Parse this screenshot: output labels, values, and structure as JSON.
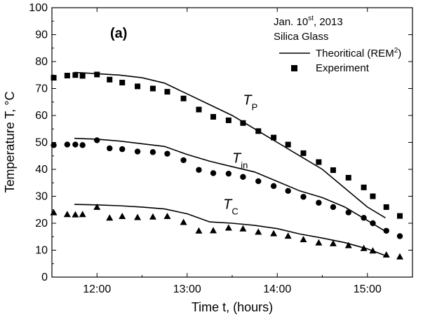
{
  "chart_data": {
    "type": "scatter",
    "panel_label": "(a)",
    "annotation": {
      "line1_prefix": "Jan. 10",
      "line1_sup": "st",
      "line1_suffix": ", 2013",
      "line2": "Silica Glass"
    },
    "legend": {
      "placement": "top-right",
      "line_label": "Theoritical (REM",
      "line_sup": "2",
      "line_close": ")",
      "marker_label": "Experiment"
    },
    "xlabel": "Time t, (hours)",
    "ylabel": "Temperature T, °C",
    "xlim": [
      11.5,
      15.5
    ],
    "ylim": [
      0,
      100
    ],
    "xticks": [
      {
        "value": 12,
        "label": "12:00"
      },
      {
        "value": 13,
        "label": "13:00"
      },
      {
        "value": 14,
        "label": "14:00"
      },
      {
        "value": 15,
        "label": "15:00"
      }
    ],
    "yticks": [
      0,
      10,
      20,
      30,
      40,
      50,
      60,
      70,
      80,
      90,
      100
    ],
    "series": [
      {
        "label_main": "T",
        "label_sub": "P",
        "marker": "square",
        "label_pos": [
          13.62,
          64
        ],
        "theory": [
          [
            11.75,
            76
          ],
          [
            12.0,
            75.5
          ],
          [
            12.25,
            75
          ],
          [
            12.5,
            74
          ],
          [
            12.75,
            72
          ],
          [
            13.0,
            68
          ],
          [
            13.25,
            64
          ],
          [
            13.5,
            60
          ],
          [
            13.75,
            55
          ],
          [
            14.0,
            50
          ],
          [
            14.25,
            45
          ],
          [
            14.5,
            40
          ],
          [
            14.75,
            33
          ],
          [
            15.0,
            26
          ],
          [
            15.2,
            22
          ]
        ],
        "points": [
          [
            11.52,
            74
          ],
          [
            11.67,
            74.8
          ],
          [
            11.76,
            75
          ],
          [
            11.84,
            74.7
          ],
          [
            12.0,
            75.2
          ],
          [
            12.14,
            73.3
          ],
          [
            12.28,
            72.2
          ],
          [
            12.45,
            70.8
          ],
          [
            12.62,
            70
          ],
          [
            12.78,
            68.8
          ],
          [
            12.96,
            66.3
          ],
          [
            13.13,
            62.2
          ],
          [
            13.29,
            59.5
          ],
          [
            13.46,
            58.2
          ],
          [
            13.62,
            57.2
          ],
          [
            13.79,
            54.2
          ],
          [
            13.96,
            51.8
          ],
          [
            14.12,
            49.2
          ],
          [
            14.29,
            46
          ],
          [
            14.46,
            42.7
          ],
          [
            14.62,
            39.7
          ],
          [
            14.79,
            36.9
          ],
          [
            14.96,
            33.3
          ],
          [
            15.06,
            30
          ],
          [
            15.21,
            26
          ],
          [
            15.36,
            22.7
          ]
        ]
      },
      {
        "label_main": "T",
        "label_sub": "in",
        "marker": "circle",
        "label_pos": [
          13.5,
          42.5
        ],
        "theory": [
          [
            11.75,
            51.5
          ],
          [
            12.0,
            51.2
          ],
          [
            12.25,
            50.5
          ],
          [
            12.5,
            49.5
          ],
          [
            12.75,
            48.5
          ],
          [
            13.0,
            45.5
          ],
          [
            13.25,
            43
          ],
          [
            13.5,
            41
          ],
          [
            13.75,
            39
          ],
          [
            14.0,
            35.5
          ],
          [
            14.25,
            32
          ],
          [
            14.5,
            29.5
          ],
          [
            14.75,
            26
          ],
          [
            15.0,
            21
          ],
          [
            15.2,
            17
          ]
        ],
        "points": [
          [
            11.52,
            49
          ],
          [
            11.67,
            49.2
          ],
          [
            11.76,
            49.2
          ],
          [
            11.84,
            49
          ],
          [
            12.0,
            50.8
          ],
          [
            12.14,
            47.8
          ],
          [
            12.28,
            47.5
          ],
          [
            12.45,
            46.6
          ],
          [
            12.62,
            46.4
          ],
          [
            12.78,
            45.8
          ],
          [
            12.96,
            43.4
          ],
          [
            13.13,
            39.8
          ],
          [
            13.29,
            38.6
          ],
          [
            13.46,
            38.4
          ],
          [
            13.62,
            37.2
          ],
          [
            13.79,
            35.6
          ],
          [
            13.96,
            33.8
          ],
          [
            14.12,
            32
          ],
          [
            14.29,
            29.8
          ],
          [
            14.46,
            27.6
          ],
          [
            14.62,
            26
          ],
          [
            14.79,
            24
          ],
          [
            14.96,
            22
          ],
          [
            15.06,
            20
          ],
          [
            15.21,
            17.2
          ],
          [
            15.36,
            15.2
          ]
        ]
      },
      {
        "label_main": "T",
        "label_sub": "C",
        "marker": "triangle",
        "label_pos": [
          13.4,
          25.3
        ],
        "theory": [
          [
            11.75,
            27
          ],
          [
            12.0,
            26.8
          ],
          [
            12.25,
            26.5
          ],
          [
            12.5,
            26
          ],
          [
            12.75,
            25.3
          ],
          [
            13.0,
            23.5
          ],
          [
            13.25,
            20.5
          ],
          [
            13.5,
            20
          ],
          [
            13.75,
            19.2
          ],
          [
            14.0,
            18
          ],
          [
            14.25,
            16
          ],
          [
            14.5,
            14.5
          ],
          [
            14.75,
            12.8
          ],
          [
            15.0,
            10.5
          ],
          [
            15.2,
            8
          ]
        ],
        "points": [
          [
            11.52,
            24
          ],
          [
            11.67,
            23.3
          ],
          [
            11.76,
            23.2
          ],
          [
            11.84,
            23.3
          ],
          [
            12.0,
            26
          ],
          [
            12.14,
            22
          ],
          [
            12.28,
            22.6
          ],
          [
            12.45,
            22.2
          ],
          [
            12.62,
            22.4
          ],
          [
            12.78,
            22.6
          ],
          [
            12.96,
            20.4
          ],
          [
            13.13,
            17.2
          ],
          [
            13.29,
            17.3
          ],
          [
            13.46,
            18.3
          ],
          [
            13.62,
            18
          ],
          [
            13.79,
            16.8
          ],
          [
            13.96,
            16.2
          ],
          [
            14.12,
            15.3
          ],
          [
            14.29,
            14
          ],
          [
            14.46,
            12.8
          ],
          [
            14.62,
            12.5
          ],
          [
            14.79,
            11.8
          ],
          [
            14.96,
            10.7
          ],
          [
            15.06,
            9.8
          ],
          [
            15.21,
            8.3
          ],
          [
            15.36,
            7.6
          ]
        ]
      }
    ]
  }
}
